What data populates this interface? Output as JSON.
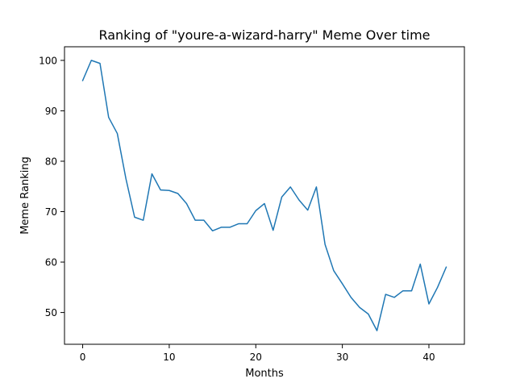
{
  "chart_data": {
    "type": "line",
    "title": "Ranking of \"youre-a-wizard-harry\" Meme Over time",
    "xlabel": "Months",
    "ylabel": "Meme Ranking",
    "xlim": [
      -2.1,
      44.1
    ],
    "ylim": [
      43.7,
      102.7
    ],
    "xticks": [
      0,
      10,
      20,
      30,
      40
    ],
    "yticks": [
      50,
      60,
      70,
      80,
      90,
      100
    ],
    "grid": false,
    "line_color": "#1f77b4",
    "series": [
      {
        "x": [
          0,
          1,
          2,
          3,
          4,
          5,
          6,
          7,
          8,
          9,
          10,
          11,
          12,
          13,
          14,
          15,
          16,
          17,
          18,
          19,
          20,
          21,
          22,
          23,
          24,
          25,
          26,
          27,
          28,
          29,
          30,
          31,
          32,
          33,
          34,
          35,
          36,
          37,
          38,
          39,
          40,
          41,
          42
        ],
        "values": [
          96.0,
          100.0,
          99.4,
          88.7,
          85.5,
          76.5,
          68.9,
          68.3,
          77.5,
          74.3,
          74.2,
          73.6,
          71.6,
          68.3,
          68.3,
          66.2,
          66.9,
          66.9,
          67.6,
          67.6,
          70.2,
          71.6,
          66.3,
          72.9,
          74.9,
          72.3,
          70.3,
          74.9,
          63.5,
          58.3,
          55.7,
          53.0,
          51.0,
          49.7,
          46.4,
          53.6,
          53.0,
          54.3,
          54.3,
          59.6,
          51.7,
          55.0,
          59.0
        ]
      }
    ]
  }
}
